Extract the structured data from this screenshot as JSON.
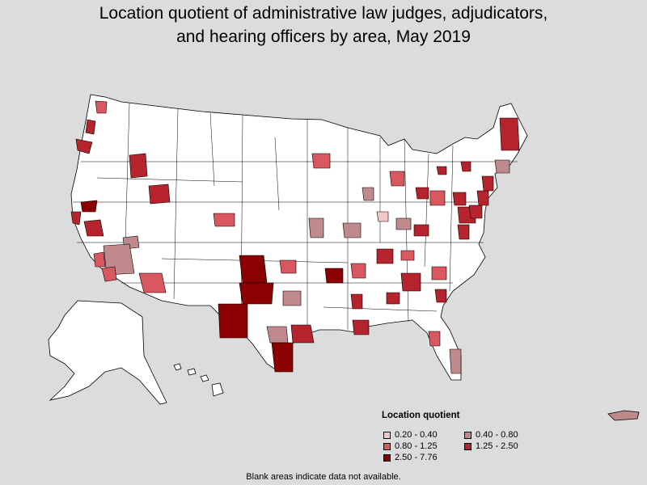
{
  "title_lines": [
    "Location quotient of administrative law judges, adjudicators,",
    "and hearing officers by area, May 2019"
  ],
  "legend": {
    "title": "Location quotient",
    "items": [
      {
        "label": "0.20 - 0.40",
        "color": "#f4c7c7"
      },
      {
        "label": "0.40 - 0.80",
        "color": "#c08a8c"
      },
      {
        "label": "0.80 - 1.25",
        "color": "#d9575f"
      },
      {
        "label": "1.25 - 2.50",
        "color": "#b5242c"
      },
      {
        "label": "2.50 - 7.76",
        "color": "#8b0000"
      }
    ]
  },
  "footnote": "Blank areas indicate data not available.",
  "colors": {
    "background": "#dcdcdc",
    "land": "#ffffff",
    "border": "#000000"
  }
}
